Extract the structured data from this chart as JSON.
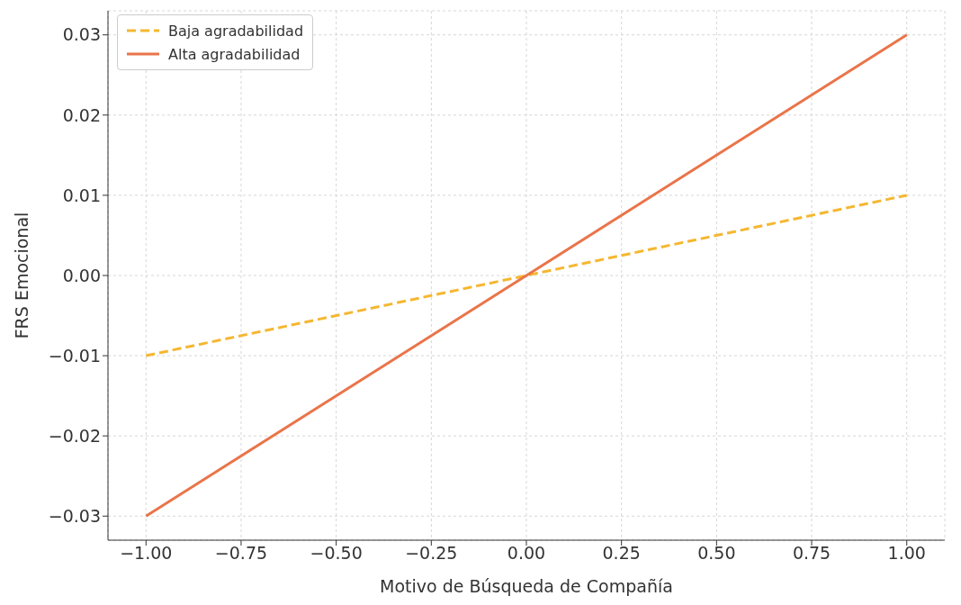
{
  "chart_data": {
    "type": "line",
    "xlabel": "Motivo de Búsqueda de Compañía",
    "ylabel": "FRS Emocional",
    "x": [
      -1,
      1
    ],
    "series": [
      {
        "name": "Baja agradabilidad",
        "color": "#f5b731",
        "values": [
          -0.01,
          0.01
        ],
        "line_style": "dashed"
      },
      {
        "name": "Alta agradabilidad",
        "color": "#ea7449",
        "values": [
          -0.03,
          0.03
        ],
        "line_style": "solid"
      }
    ],
    "xlim": [
      -1.1,
      1.1
    ],
    "xticks": [
      {
        "value": -1,
        "label": "−1.00"
      },
      {
        "value": -0.75,
        "label": "−0.75"
      },
      {
        "value": -0.5,
        "label": "−0.50"
      },
      {
        "value": -0.25,
        "label": "−0.25"
      },
      {
        "value": 0,
        "label": "0.00"
      },
      {
        "value": 0.25,
        "label": "0.25"
      },
      {
        "value": 0.5,
        "label": "0.50"
      },
      {
        "value": 0.75,
        "label": "0.75"
      },
      {
        "value": 1,
        "label": "1.00"
      }
    ],
    "ylim": [
      -0.033,
      0.033
    ],
    "yticks": [
      {
        "value": -0.03,
        "label": "−0.03"
      },
      {
        "value": -0.02,
        "label": "−0.02"
      },
      {
        "value": -0.01,
        "label": "−0.01"
      },
      {
        "value": 0,
        "label": "0.00"
      },
      {
        "value": 0.01,
        "label": "0.01"
      },
      {
        "value": 0.02,
        "label": "0.02"
      },
      {
        "value": 0.03,
        "label": "0.03"
      }
    ],
    "grid": true,
    "legend": "top left",
    "marker": "none"
  }
}
